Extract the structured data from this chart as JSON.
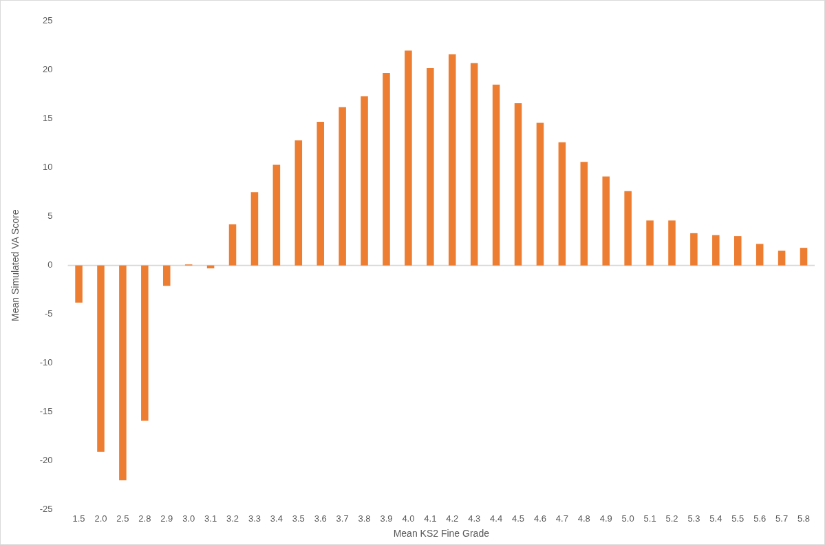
{
  "chart_data": {
    "type": "bar",
    "xlabel": "Mean KS2 Fine Grade",
    "ylabel": "Mean Simulated VA Score",
    "categories": [
      "1.5",
      "2.0",
      "2.5",
      "2.8",
      "2.9",
      "3.0",
      "3.1",
      "3.2",
      "3.3",
      "3.4",
      "3.5",
      "3.6",
      "3.7",
      "3.8",
      "3.9",
      "4.0",
      "4.1",
      "4.2",
      "4.3",
      "4.4",
      "4.5",
      "4.6",
      "4.7",
      "4.8",
      "4.9",
      "5.0",
      "5.1",
      "5.2",
      "5.3",
      "5.4",
      "5.5",
      "5.6",
      "5.7",
      "5.8"
    ],
    "values": [
      -3.8,
      -19.1,
      -22.0,
      -15.9,
      -2.1,
      0.1,
      -0.3,
      4.2,
      7.5,
      10.3,
      12.8,
      14.7,
      16.2,
      17.3,
      19.7,
      22.0,
      20.2,
      21.6,
      20.7,
      18.5,
      16.6,
      14.6,
      12.6,
      10.6,
      9.1,
      7.6,
      4.6,
      4.6,
      3.3,
      3.1,
      3.0,
      2.2,
      1.5,
      1.8
    ],
    "color": "#ed7d31",
    "ylim": [
      -25,
      25
    ],
    "yticks": [
      -25,
      -20,
      -15,
      -10,
      -5,
      0,
      5,
      10,
      15,
      20,
      25
    ],
    "ref_lines": [
      {
        "axis": "y",
        "value": 0,
        "color": "#d9d9d9"
      }
    ],
    "grid": false,
    "legend": false
  }
}
